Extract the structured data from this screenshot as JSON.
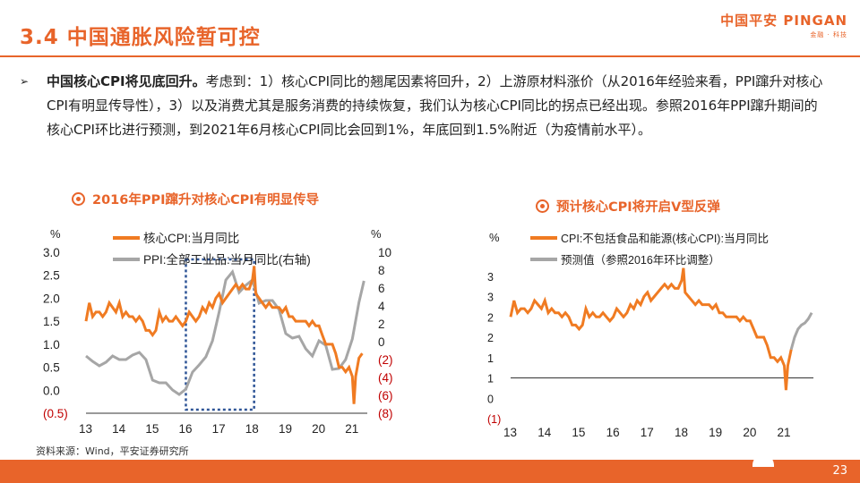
{
  "header": {
    "title": "3.4 中国通胀风险暂可控",
    "logo_main": "中国平安 PINGAN",
    "logo_sub": "金融 · 科技"
  },
  "bullet": {
    "lead": "中国核心CPI将见底回升。",
    "body": "考虑到：1）核心CPI同比的翘尾因素将回升，2）上游原材料涨价（从2016年经验来看，PPI蹿升对核心CPI有明显传导性），3）以及消费尤其是服务消费的持续恢复，我们认为核心CPI同比的拐点已经出现。参照2016年PPI蹿升期间的核心CPI环比进行预测，到2021年6月核心CPI同比会回到1%，年底回到1.5%附近（为疫情前水平）。"
  },
  "chart1_title": "2016年PPI蹿升对核心CPI有明显传导",
  "chart2_title": "预计核心CPI将开启V型反弹",
  "source": "资料来源：Wind，平安证券研究所",
  "page_number": "23",
  "colors": {
    "accent": "#e8642a",
    "series_orange": "#f07b22",
    "series_gray": "#a6a6a6",
    "negative_label": "#c00000",
    "box": "#2f5597"
  },
  "chart_data": [
    {
      "type": "line",
      "title": "2016年PPI蹿升对核心CPI有明显传导",
      "ylabel": "%",
      "y2label": "%",
      "ylim": [
        -0.5,
        3.0
      ],
      "y2lim": [
        -8,
        10
      ],
      "yticks": [
        "(0.5)",
        "0.0",
        "0.5",
        "1.0",
        "1.5",
        "2.0",
        "2.5",
        "3.0"
      ],
      "y2ticks": [
        "(8)",
        "(6)",
        "(4)",
        "(2)",
        "0",
        "2",
        "4",
        "6",
        "8",
        "10"
      ],
      "xticks": [
        "13",
        "14",
        "15",
        "16",
        "17",
        "18",
        "19",
        "20",
        "21"
      ],
      "xlim": [
        2013.0,
        2021.45
      ],
      "annotation": "dotted box around 2016–2018",
      "series": [
        {
          "name": "核心CPI:当月同比",
          "axis": "left",
          "x": [
            2013.0,
            2013.1,
            2013.2,
            2013.3,
            2013.4,
            2013.5,
            2013.6,
            2013.7,
            2013.8,
            2013.9,
            2014.0,
            2014.1,
            2014.2,
            2014.3,
            2014.4,
            2014.5,
            2014.6,
            2014.7,
            2014.8,
            2014.9,
            2015.0,
            2015.1,
            2015.2,
            2015.3,
            2015.4,
            2015.5,
            2015.6,
            2015.7,
            2015.8,
            2015.9,
            2016.0,
            2016.1,
            2016.2,
            2016.3,
            2016.4,
            2016.5,
            2016.6,
            2016.7,
            2016.8,
            2016.9,
            2017.0,
            2017.1,
            2017.2,
            2017.3,
            2017.4,
            2017.5,
            2017.6,
            2017.7,
            2017.8,
            2017.9,
            2018.0,
            2018.05,
            2018.1,
            2018.2,
            2018.3,
            2018.4,
            2018.5,
            2018.6,
            2018.7,
            2018.8,
            2018.9,
            2019.0,
            2019.1,
            2019.2,
            2019.3,
            2019.4,
            2019.5,
            2019.6,
            2019.7,
            2019.8,
            2019.9,
            2020.0,
            2020.1,
            2020.2,
            2020.3,
            2020.4,
            2020.5,
            2020.6,
            2020.7,
            2020.8,
            2020.9,
            2021.0,
            2021.05,
            2021.1,
            2021.2,
            2021.3
          ],
          "values": [
            1.5,
            1.9,
            1.6,
            1.7,
            1.7,
            1.6,
            1.7,
            1.9,
            1.8,
            1.7,
            1.9,
            1.6,
            1.7,
            1.6,
            1.6,
            1.5,
            1.6,
            1.5,
            1.3,
            1.3,
            1.2,
            1.3,
            1.7,
            1.5,
            1.6,
            1.5,
            1.5,
            1.6,
            1.5,
            1.4,
            1.5,
            1.7,
            1.6,
            1.5,
            1.6,
            1.8,
            1.7,
            1.9,
            1.8,
            2.0,
            2.1,
            1.9,
            2.0,
            2.1,
            2.2,
            2.3,
            2.2,
            2.3,
            2.2,
            2.2,
            2.4,
            2.7,
            2.1,
            2.0,
            1.9,
            1.8,
            1.9,
            1.8,
            1.8,
            1.8,
            1.7,
            1.8,
            1.6,
            1.6,
            1.5,
            1.5,
            1.5,
            1.5,
            1.4,
            1.5,
            1.4,
            1.4,
            1.2,
            1.0,
            1.0,
            1.0,
            0.8,
            0.5,
            0.5,
            0.4,
            0.5,
            0.3,
            -0.3,
            0.3,
            0.7,
            0.8
          ]
        },
        {
          "name": "PPI:全部工业品:当月同比(右轴)",
          "axis": "right",
          "x": [
            2013.0,
            2013.2,
            2013.4,
            2013.6,
            2013.8,
            2014.0,
            2014.2,
            2014.4,
            2014.6,
            2014.8,
            2015.0,
            2015.2,
            2015.4,
            2015.6,
            2015.8,
            2016.0,
            2016.2,
            2016.4,
            2016.6,
            2016.8,
            2017.0,
            2017.2,
            2017.4,
            2017.6,
            2017.8,
            2018.0,
            2018.2,
            2018.4,
            2018.6,
            2018.8,
            2019.0,
            2019.2,
            2019.4,
            2019.6,
            2019.8,
            2020.0,
            2020.2,
            2020.4,
            2020.6,
            2020.8,
            2021.0,
            2021.2,
            2021.35
          ],
          "values": [
            -1.6,
            -2.2,
            -2.7,
            -2.3,
            -1.6,
            -2.0,
            -2.0,
            -1.5,
            -1.2,
            -2.0,
            -4.3,
            -4.6,
            -4.6,
            -5.4,
            -5.9,
            -5.3,
            -3.4,
            -2.6,
            -1.7,
            0.1,
            3.3,
            6.9,
            7.8,
            5.5,
            6.3,
            6.9,
            4.3,
            4.6,
            4.6,
            3.6,
            0.9,
            0.4,
            0.6,
            -0.8,
            -1.6,
            0.1,
            -0.4,
            -3.1,
            -3.0,
            -2.0,
            0.3,
            4.4,
            6.8
          ]
        }
      ]
    },
    {
      "type": "line",
      "title": "预计核心CPI将开启V型反弹",
      "ylabel": "%",
      "ylim": [
        -1,
        3
      ],
      "yticks": [
        "(1)",
        "0",
        "1",
        "1",
        "2",
        "2",
        "3",
        "3"
      ],
      "xticks": [
        "13",
        "14",
        "15",
        "16",
        "17",
        "18",
        "19",
        "20",
        "21"
      ],
      "xlim": [
        2013.0,
        2021.85
      ],
      "series": [
        {
          "name": "CPI:不包括食品和能源(核心CPI):当月同比",
          "x": [
            2013.0,
            2013.1,
            2013.2,
            2013.3,
            2013.4,
            2013.5,
            2013.6,
            2013.7,
            2013.8,
            2013.9,
            2014.0,
            2014.1,
            2014.2,
            2014.3,
            2014.4,
            2014.5,
            2014.6,
            2014.7,
            2014.8,
            2014.9,
            2015.0,
            2015.1,
            2015.2,
            2015.3,
            2015.4,
            2015.5,
            2015.6,
            2015.7,
            2015.8,
            2015.9,
            2016.0,
            2016.1,
            2016.2,
            2016.3,
            2016.4,
            2016.5,
            2016.6,
            2016.7,
            2016.8,
            2016.9,
            2017.0,
            2017.1,
            2017.2,
            2017.3,
            2017.4,
            2017.5,
            2017.6,
            2017.7,
            2017.8,
            2017.9,
            2018.0,
            2018.05,
            2018.1,
            2018.2,
            2018.3,
            2018.4,
            2018.5,
            2018.6,
            2018.7,
            2018.8,
            2018.9,
            2019.0,
            2019.1,
            2019.2,
            2019.3,
            2019.4,
            2019.5,
            2019.6,
            2019.7,
            2019.8,
            2019.9,
            2020.0,
            2020.1,
            2020.2,
            2020.3,
            2020.4,
            2020.5,
            2020.6,
            2020.7,
            2020.8,
            2020.9,
            2021.0,
            2021.05,
            2021.1,
            2021.2
          ],
          "values": [
            1.5,
            1.9,
            1.6,
            1.7,
            1.7,
            1.6,
            1.7,
            1.9,
            1.8,
            1.7,
            1.9,
            1.6,
            1.7,
            1.6,
            1.6,
            1.5,
            1.6,
            1.5,
            1.3,
            1.3,
            1.2,
            1.3,
            1.7,
            1.5,
            1.6,
            1.5,
            1.5,
            1.6,
            1.5,
            1.4,
            1.5,
            1.7,
            1.6,
            1.5,
            1.6,
            1.8,
            1.7,
            1.9,
            1.8,
            2.0,
            2.1,
            1.9,
            2.0,
            2.1,
            2.2,
            2.3,
            2.2,
            2.3,
            2.2,
            2.2,
            2.4,
            2.7,
            2.1,
            2.0,
            1.9,
            1.8,
            1.9,
            1.8,
            1.8,
            1.8,
            1.7,
            1.8,
            1.6,
            1.6,
            1.5,
            1.5,
            1.5,
            1.5,
            1.4,
            1.5,
            1.4,
            1.4,
            1.2,
            1.0,
            1.0,
            1.0,
            0.8,
            0.5,
            0.5,
            0.4,
            0.5,
            0.3,
            -0.3,
            0.3,
            0.7
          ]
        },
        {
          "name": "预测值（参照2016年环比调整）",
          "x": [
            2021.2,
            2021.3,
            2021.4,
            2021.5,
            2021.6,
            2021.7,
            2021.8
          ],
          "values": [
            0.7,
            1.0,
            1.2,
            1.3,
            1.35,
            1.45,
            1.6
          ]
        }
      ]
    }
  ]
}
